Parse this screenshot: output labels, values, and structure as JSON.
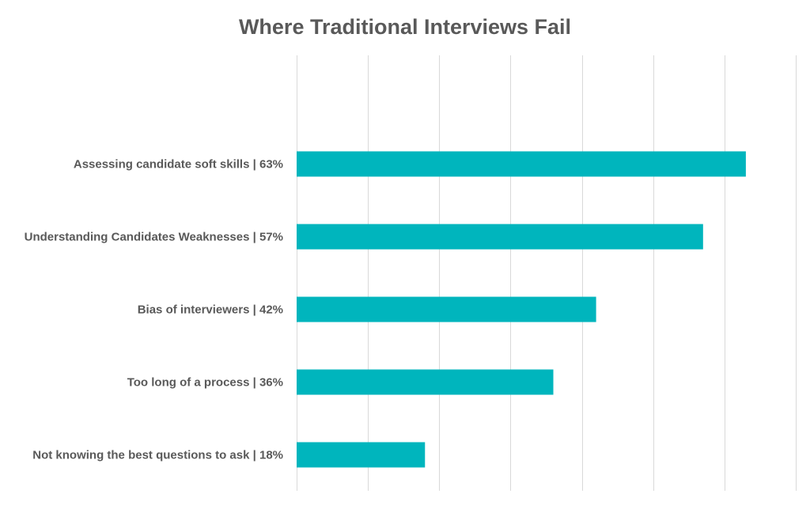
{
  "chart_data": {
    "type": "bar",
    "orientation": "horizontal",
    "title": "Where Traditional Interviews Fail",
    "xlabel": "",
    "ylabel": "",
    "categories": [
      "Assessing candidate soft skills | 63%",
      "Understanding Candidates Weaknesses | 57%",
      "Bias of interviewers | 42%",
      "Too long of a process | 36%",
      "Not knowing the best questions to ask | 18%"
    ],
    "values": [
      63,
      57,
      42,
      36,
      18
    ],
    "xlim": [
      0,
      70
    ],
    "x_gridlines_every": 10,
    "grid": true,
    "legend": "none",
    "bar_color": "#00b5bd",
    "gridline_color": "#d9d9d9",
    "text_color": "#595959"
  }
}
